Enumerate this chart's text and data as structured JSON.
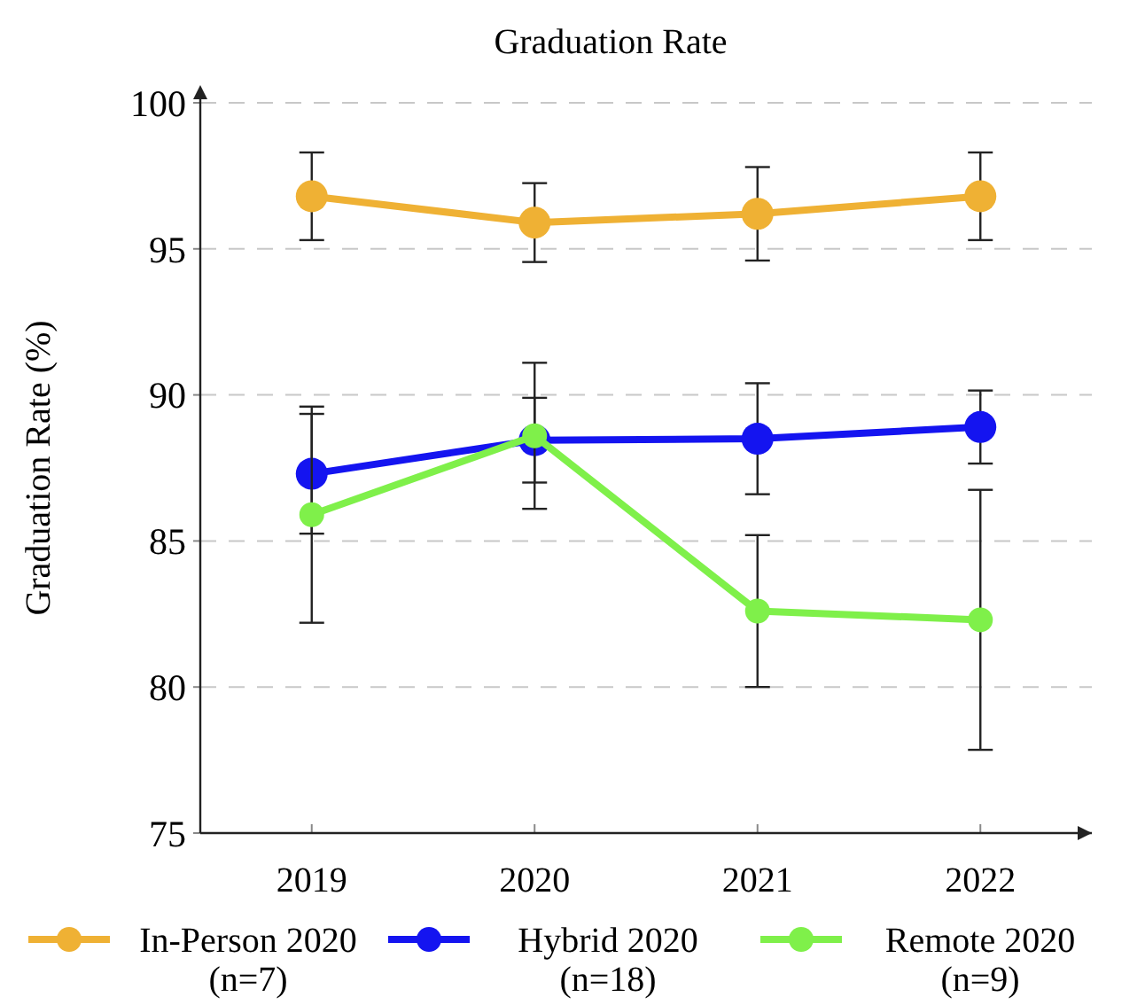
{
  "chart_data": {
    "type": "line",
    "title": "Graduation Rate",
    "ylabel": "Graduation Rate (%)",
    "categories": [
      "2019",
      "2020",
      "2021",
      "2022"
    ],
    "series": [
      {
        "name": "In-Person 2020\n(n=7)",
        "color": "#efb134",
        "values": [
          96.8,
          95.9,
          96.2,
          96.8
        ],
        "errors": [
          1.5,
          1.35,
          1.6,
          1.5
        ]
      },
      {
        "name": "Hybrid 2020\n(n=18)",
        "color": "#1414f0",
        "values": [
          87.3,
          88.45,
          88.5,
          88.9
        ],
        "errors": [
          2.05,
          1.45,
          1.9,
          1.25
        ]
      },
      {
        "name": "Remote 2020\n(n=9)",
        "color": "#7ff04a",
        "values": [
          85.9,
          88.6,
          82.6,
          82.3
        ],
        "errors": [
          3.7,
          2.5,
          2.6,
          4.45
        ]
      }
    ],
    "ylim": [
      75,
      100
    ],
    "yticks": [
      75,
      80,
      85,
      90,
      95,
      100
    ],
    "grid": "y",
    "legend": "bottom",
    "marker": "circle",
    "line_style": "solid"
  }
}
